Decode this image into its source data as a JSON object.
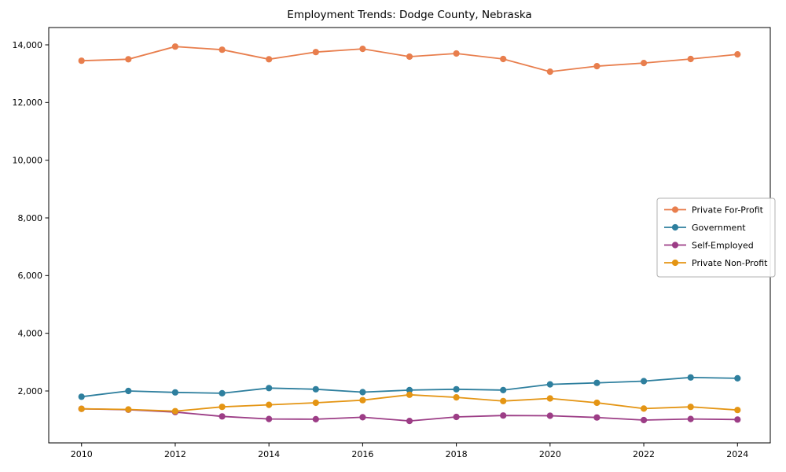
{
  "chart_data": {
    "type": "line",
    "title": "Employment Trends: Dodge County, Nebraska",
    "xlabel": "",
    "ylabel": "",
    "grid": false,
    "background": "#ffffff",
    "x": [
      2010,
      2011,
      2012,
      2013,
      2014,
      2015,
      2016,
      2017,
      2018,
      2019,
      2020,
      2021,
      2022,
      2023,
      2024
    ],
    "xticks": [
      {
        "value": 2010,
        "label": "2010"
      },
      {
        "value": 2012,
        "label": "2012"
      },
      {
        "value": 2014,
        "label": "2014"
      },
      {
        "value": 2016,
        "label": "2016"
      },
      {
        "value": 2018,
        "label": "2018"
      },
      {
        "value": 2020,
        "label": "2020"
      },
      {
        "value": 2022,
        "label": "2022"
      },
      {
        "value": 2024,
        "label": "2024"
      }
    ],
    "yticks": [
      {
        "value": 2000,
        "label": "2,000"
      },
      {
        "value": 4000,
        "label": "4,000"
      },
      {
        "value": 6000,
        "label": "6,000"
      },
      {
        "value": 8000,
        "label": "8,000"
      },
      {
        "value": 10000,
        "label": "10,000"
      },
      {
        "value": 12000,
        "label": "12,000"
      },
      {
        "value": 14000,
        "label": "14,000"
      }
    ],
    "ylim": [
      200,
      14600
    ],
    "xlim": [
      2009.3,
      2024.7
    ],
    "legend_position": "center right",
    "series": [
      {
        "name": "Private For-Profit",
        "color": "#e87e4d",
        "marker": "circle",
        "values": [
          13450,
          13500,
          13940,
          13830,
          13500,
          13750,
          13860,
          13590,
          13700,
          13510,
          13070,
          13260,
          13370,
          13510,
          13670
        ]
      },
      {
        "name": "Government",
        "color": "#2e7f9e",
        "marker": "circle",
        "values": [
          1800,
          2000,
          1950,
          1920,
          2100,
          2060,
          1960,
          2030,
          2060,
          2030,
          2230,
          2280,
          2340,
          2470,
          2440
        ]
      },
      {
        "name": "Self-Employed",
        "color": "#9c3d86",
        "marker": "circle",
        "values": [
          1380,
          1350,
          1270,
          1120,
          1030,
          1020,
          1090,
          960,
          1100,
          1150,
          1140,
          1080,
          990,
          1030,
          1010
        ]
      },
      {
        "name": "Private Non-Profit",
        "color": "#e49514",
        "marker": "circle",
        "values": [
          1380,
          1360,
          1300,
          1450,
          1520,
          1590,
          1680,
          1870,
          1780,
          1650,
          1740,
          1590,
          1390,
          1450,
          1340
        ]
      }
    ]
  }
}
